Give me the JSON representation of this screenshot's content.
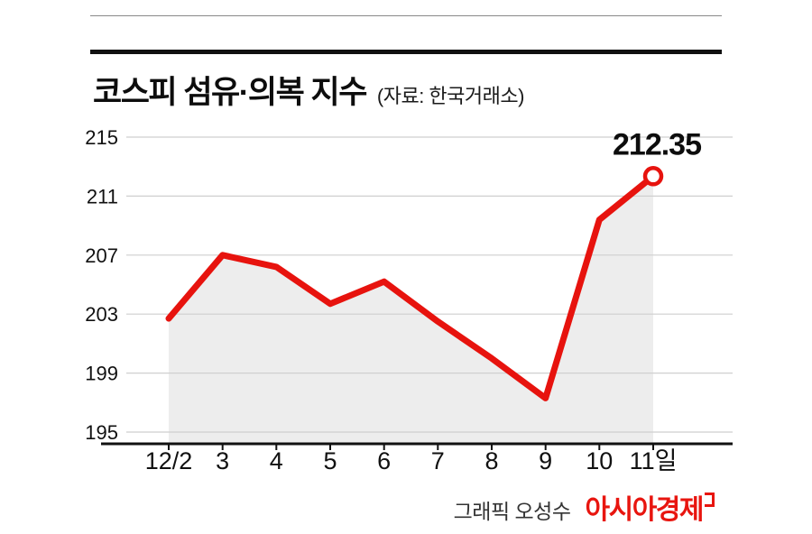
{
  "header": {
    "title": "코스피 섬유·의복 지수",
    "source": "(자료: 한국거래소)"
  },
  "chart_data": {
    "type": "line",
    "title": "코스피 섬유·의복 지수",
    "subtitle": "(자료: 한국거래소)",
    "x": [
      "12/2",
      "3",
      "4",
      "5",
      "6",
      "7",
      "8",
      "9",
      "10",
      "11일"
    ],
    "series": [
      {
        "name": "코스피 섬유·의복 지수",
        "values": [
          202.7,
          207.0,
          206.2,
          203.7,
          205.2,
          202.5,
          200.0,
          197.3,
          209.4,
          212.35
        ]
      }
    ],
    "ylim": [
      195,
      215
    ],
    "yticks": [
      195,
      199,
      203,
      207,
      211,
      215
    ],
    "grid": true,
    "legend": "none",
    "line_color": "#e7130e",
    "area_color": "#ededed",
    "marker_fill": "#ffffff",
    "last_value_label": "212.35",
    "axis_color": "#111111",
    "gridline_color": "#cfcfcf"
  },
  "footer": {
    "credit": "그래픽 오성수",
    "brand": "아시아경제"
  }
}
